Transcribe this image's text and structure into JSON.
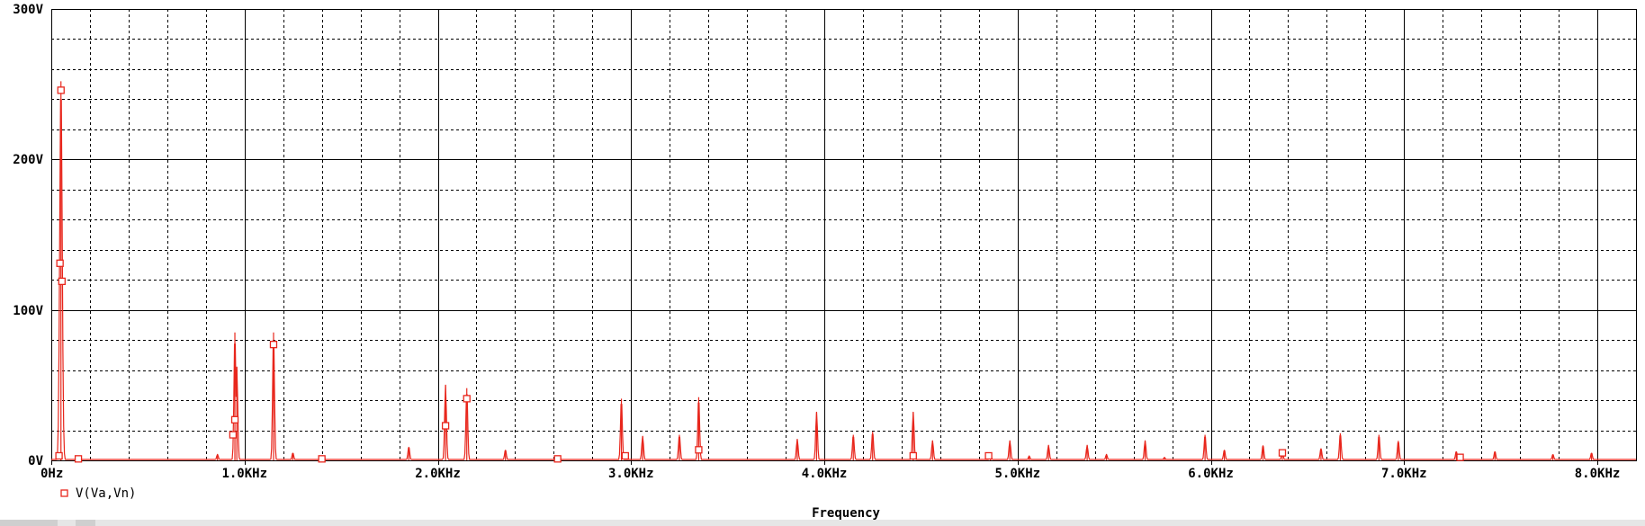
{
  "colors": {
    "trace": "#e8261c",
    "axis": "#000000",
    "grid_major": "#000000",
    "grid_minor": "#000000",
    "background": "#ffffff"
  },
  "chart_data": {
    "type": "line",
    "title": "",
    "xlabel": "Frequency",
    "ylabel": "",
    "xlim": [
      0,
      8.2
    ],
    "ylim": [
      0,
      300
    ],
    "x_unit": "KHz",
    "y_unit": "V",
    "x_tick_values": [
      0,
      1,
      2,
      3,
      4,
      5,
      6,
      7,
      8
    ],
    "x_tick_labels": [
      "0Hz",
      "1.0KHz",
      "2.0KHz",
      "3.0KHz",
      "4.0KHz",
      "5.0KHz",
      "6.0KHz",
      "7.0KHz",
      "8.0KHz"
    ],
    "y_tick_values": [
      0,
      100,
      200,
      300
    ],
    "y_tick_labels": [
      "0V",
      "100V",
      "200V",
      "300V"
    ],
    "grid": true,
    "legend": "bottom-left",
    "series": [
      {
        "name": "V(Va,Vn)",
        "peaks": [
          [
            0.05,
            252
          ],
          [
            0.86,
            4
          ],
          [
            0.95,
            85
          ],
          [
            0.96,
            62
          ],
          [
            1.15,
            85
          ],
          [
            1.25,
            5
          ],
          [
            1.85,
            9
          ],
          [
            2.04,
            50
          ],
          [
            2.15,
            48
          ],
          [
            2.35,
            7
          ],
          [
            2.95,
            41
          ],
          [
            3.06,
            16
          ],
          [
            3.25,
            17
          ],
          [
            3.35,
            42
          ],
          [
            3.86,
            14
          ],
          [
            3.96,
            32
          ],
          [
            4.15,
            17
          ],
          [
            4.25,
            19
          ],
          [
            4.46,
            32
          ],
          [
            4.56,
            13
          ],
          [
            4.86,
            4
          ],
          [
            4.96,
            13
          ],
          [
            5.06,
            3
          ],
          [
            5.16,
            10
          ],
          [
            5.36,
            10
          ],
          [
            5.46,
            4
          ],
          [
            5.66,
            13
          ],
          [
            5.76,
            2
          ],
          [
            5.97,
            17
          ],
          [
            6.07,
            7
          ],
          [
            6.27,
            10
          ],
          [
            6.37,
            6
          ],
          [
            6.57,
            8
          ],
          [
            6.67,
            18
          ],
          [
            6.87,
            17
          ],
          [
            6.97,
            13
          ],
          [
            7.27,
            6
          ],
          [
            7.47,
            6
          ],
          [
            7.77,
            4
          ],
          [
            7.97,
            5
          ]
        ],
        "markers": [
          [
            0.04,
            3
          ],
          [
            0.045,
            131
          ],
          [
            0.05,
            246
          ],
          [
            0.055,
            119
          ],
          [
            0.14,
            1
          ],
          [
            0.94,
            17
          ],
          [
            0.95,
            27
          ],
          [
            1.15,
            77
          ],
          [
            1.4,
            1
          ],
          [
            2.04,
            23
          ],
          [
            2.15,
            41
          ],
          [
            2.62,
            1
          ],
          [
            2.97,
            3
          ],
          [
            3.35,
            7
          ],
          [
            4.46,
            3
          ],
          [
            4.85,
            3
          ],
          [
            6.37,
            5
          ],
          [
            7.29,
            2
          ]
        ]
      }
    ]
  }
}
